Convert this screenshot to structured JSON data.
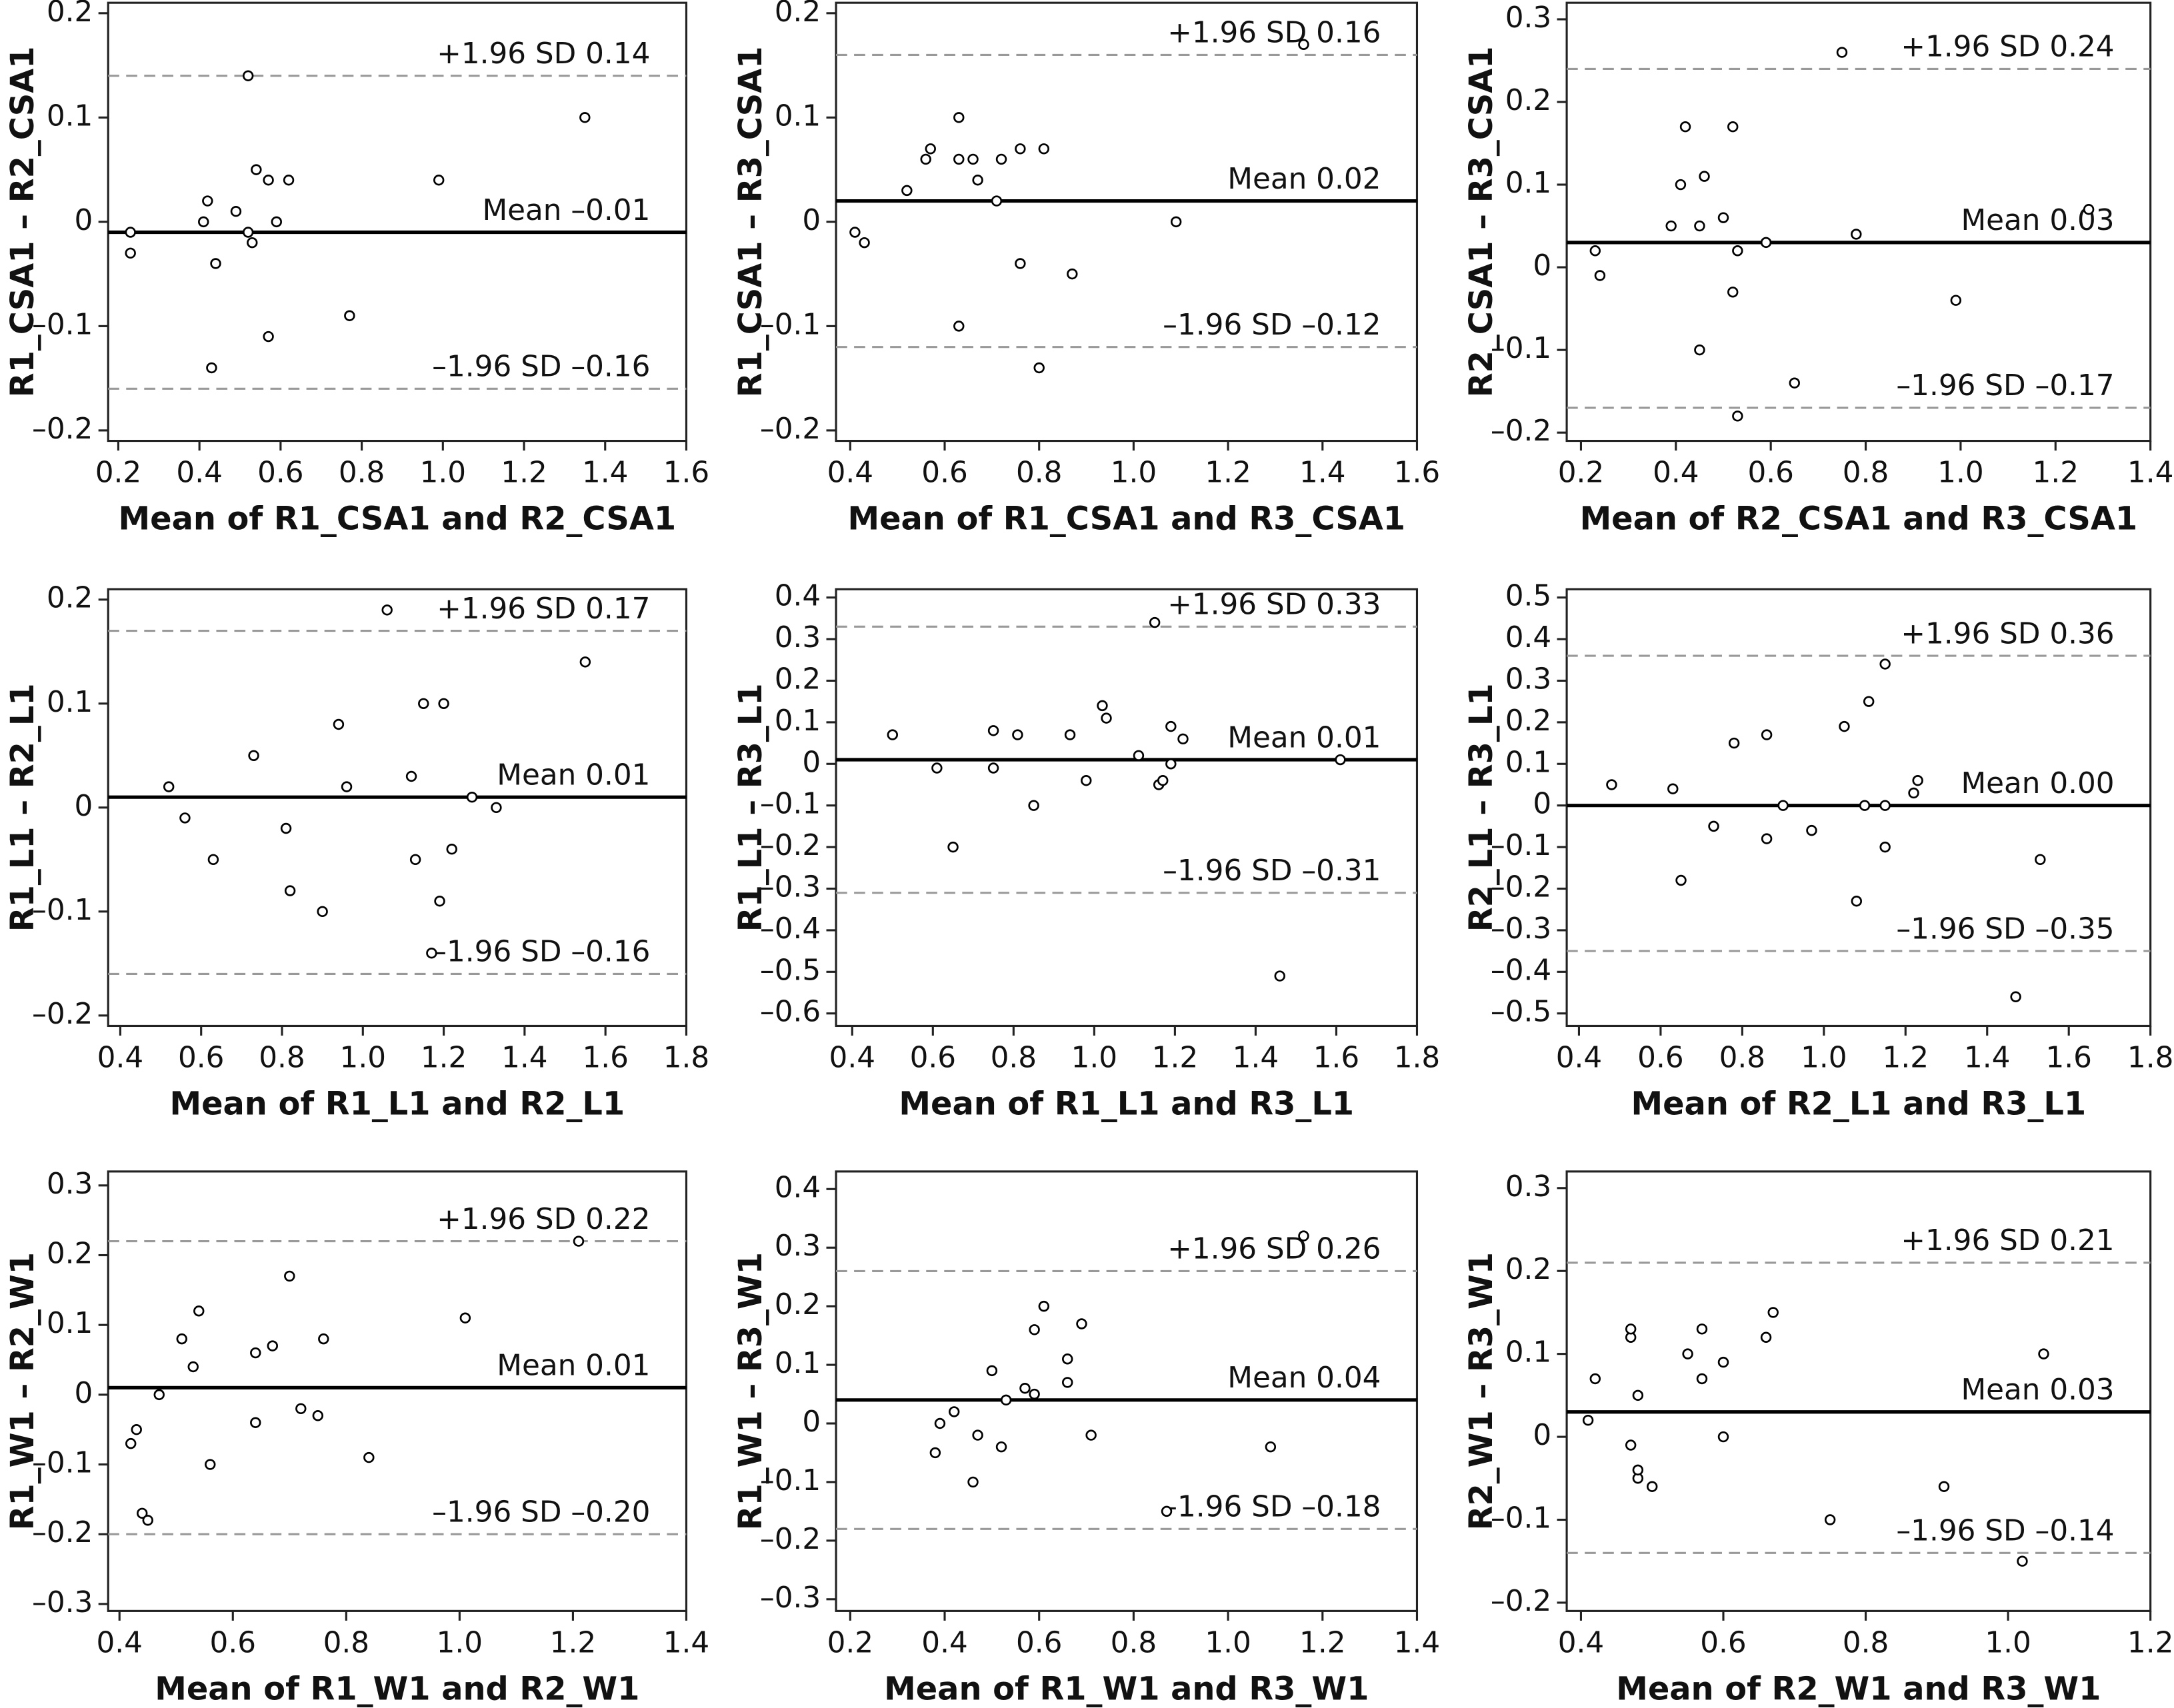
{
  "chart_data": [
    {
      "type": "scatter",
      "y_label": "R1_CSA1 – R2_CSA1",
      "x_label": "Mean of R1_CSA1 and R2_CSA1",
      "color": "#000000",
      "x": [
        0.23,
        0.23,
        0.41,
        0.42,
        0.44,
        0.43,
        0.49,
        0.52,
        0.54,
        0.52,
        0.53,
        0.57,
        0.59,
        0.62,
        0.57,
        0.77,
        0.99,
        1.35
      ],
      "values": [
        -0.01,
        -0.03,
        0,
        0.02,
        -0.04,
        -0.14,
        0.01,
        0.14,
        0.05,
        -0.01,
        -0.02,
        0.04,
        0,
        0.04,
        -0.11,
        -0.09,
        0.04,
        0.1
      ],
      "reference_lines": [
        {
          "label": "+1.96 SD 0.14",
          "value": 0.14,
          "style": "dashed"
        },
        {
          "label": "Mean –0.01",
          "value": -0.01,
          "style": "solid"
        },
        {
          "label": "–1.96 SD –0.16",
          "value": -0.16,
          "style": "dashed"
        }
      ],
      "xlim": [
        0.175,
        1.6
      ],
      "ylim": [
        -0.21,
        0.21
      ],
      "xticks": [
        0.2,
        0.4,
        0.6,
        0.8,
        {
          "value": 1,
          "label": "1.0"
        },
        1.2,
        1.4,
        1.6
      ],
      "yticks": [
        {
          "value": -0.2,
          "label": "–0.2"
        },
        {
          "value": -0.1,
          "label": "–0.1"
        },
        0,
        0.1,
        0.2
      ]
    },
    {
      "type": "scatter",
      "y_label": "R1_CSA1 – R3_CSA1",
      "x_label": "Mean of R1_CSA1 and R3_CSA1",
      "color": "#000000",
      "x": [
        0.41,
        0.43,
        0.52,
        0.56,
        0.57,
        0.63,
        0.63,
        0.66,
        0.67,
        0.71,
        0.72,
        0.76,
        0.81,
        0.63,
        0.76,
        0.8,
        0.87,
        1.09,
        1.36
      ],
      "values": [
        -0.01,
        -0.02,
        0.03,
        0.06,
        0.07,
        0.1,
        0.06,
        0.06,
        0.04,
        0.02,
        0.06,
        0.07,
        0.07,
        -0.1,
        -0.04,
        -0.14,
        -0.05,
        0,
        0.17
      ],
      "reference_lines": [
        {
          "label": "+1.96 SD 0.16",
          "value": 0.16,
          "style": "dashed"
        },
        {
          "label": "Mean 0.02",
          "value": 0.02,
          "style": "solid"
        },
        {
          "label": "–1.96 SD –0.12",
          "value": -0.12,
          "style": "dashed"
        }
      ],
      "xlim": [
        0.37,
        1.6
      ],
      "ylim": [
        -0.21,
        0.21
      ],
      "xticks": [
        0.4,
        0.6,
        0.8,
        {
          "value": 1,
          "label": "1.0"
        },
        1.2,
        1.4,
        1.6
      ],
      "yticks": [
        {
          "value": -0.2,
          "label": "–0.2"
        },
        {
          "value": -0.1,
          "label": "–0.1"
        },
        0,
        0.1,
        0.2
      ]
    },
    {
      "type": "scatter",
      "y_label": "R2_CSA1 – R3_CSA1",
      "x_label": "Mean of R2_CSA1 and R3_CSA1",
      "color": "#000000",
      "x": [
        0.23,
        0.24,
        0.39,
        0.41,
        0.42,
        0.45,
        0.46,
        0.45,
        0.5,
        0.52,
        0.52,
        0.53,
        0.53,
        0.59,
        0.65,
        0.75,
        0.78,
        0.99,
        1.27
      ],
      "values": [
        0.02,
        -0.01,
        0.05,
        0.1,
        0.17,
        0.05,
        0.11,
        -0.1,
        0.06,
        -0.03,
        0.17,
        0.02,
        -0.18,
        0.03,
        -0.14,
        0.26,
        0.04,
        -0.04,
        0.07
      ],
      "reference_lines": [
        {
          "label": "+1.96 SD 0.24",
          "value": 0.24,
          "style": "dashed"
        },
        {
          "label": "Mean 0.03",
          "value": 0.03,
          "style": "solid"
        },
        {
          "label": "–1.96 SD –0.17",
          "value": -0.17,
          "style": "dashed"
        }
      ],
      "xlim": [
        0.17,
        1.4
      ],
      "ylim": [
        -0.21,
        0.32
      ],
      "xticks": [
        0.2,
        0.4,
        0.6,
        0.8,
        {
          "value": 1,
          "label": "1.0"
        },
        1.2,
        1.4
      ],
      "yticks": [
        {
          "value": -0.2,
          "label": "–0.2"
        },
        {
          "value": -0.1,
          "label": "–0.1"
        },
        0,
        0.1,
        0.2,
        0.3
      ]
    },
    {
      "type": "scatter",
      "y_label": "R1_L1 – R2_L1",
      "x_label": "Mean of R1_L1 and R2_L1",
      "color": "#000000",
      "x": [
        0.52,
        0.56,
        0.63,
        0.73,
        0.81,
        0.82,
        0.9,
        0.94,
        0.96,
        1.06,
        1.12,
        1.13,
        1.15,
        1.17,
        1.2,
        1.19,
        1.22,
        1.27,
        1.33,
        1.55
      ],
      "values": [
        0.02,
        -0.01,
        -0.05,
        0.05,
        -0.02,
        -0.08,
        -0.1,
        0.08,
        0.02,
        0.19,
        0.03,
        -0.05,
        0.1,
        -0.14,
        0.1,
        -0.09,
        -0.04,
        0.01,
        0,
        0.14
      ],
      "reference_lines": [
        {
          "label": "+1.96 SD 0.17",
          "value": 0.17,
          "style": "dashed"
        },
        {
          "label": "Mean 0.01",
          "value": 0.01,
          "style": "solid"
        },
        {
          "label": "–1.96 SD –0.16",
          "value": -0.16,
          "style": "dashed"
        }
      ],
      "xlim": [
        0.37,
        1.8
      ],
      "ylim": [
        -0.21,
        0.21
      ],
      "xticks": [
        0.4,
        0.6,
        0.8,
        {
          "value": 1,
          "label": "1.0"
        },
        1.2,
        1.4,
        1.6,
        1.8
      ],
      "yticks": [
        {
          "value": -0.2,
          "label": "–0.2"
        },
        {
          "value": -0.1,
          "label": "–0.1"
        },
        0,
        0.1,
        0.2
      ]
    },
    {
      "type": "scatter",
      "y_label": "R1_L1 – R3_L1",
      "x_label": "Mean of R1_L1 and R3_L1",
      "color": "#000000",
      "x": [
        0.5,
        0.61,
        0.65,
        0.75,
        0.75,
        0.81,
        0.85,
        0.94,
        0.98,
        1.02,
        1.03,
        1.11,
        1.15,
        1.16,
        1.17,
        1.19,
        1.19,
        1.22,
        1.46,
        1.61
      ],
      "values": [
        0.07,
        -0.01,
        -0.2,
        0.08,
        -0.01,
        0.07,
        -0.1,
        0.07,
        -0.04,
        0.14,
        0.11,
        0.02,
        0.34,
        -0.05,
        -0.04,
        0.09,
        0,
        0.06,
        -0.51,
        0.01
      ],
      "reference_lines": [
        {
          "label": "+1.96 SD 0.33",
          "value": 0.33,
          "style": "dashed"
        },
        {
          "label": "Mean 0.01",
          "value": 0.01,
          "style": "solid"
        },
        {
          "label": "–1.96 SD –0.31",
          "value": -0.31,
          "style": "dashed"
        }
      ],
      "xlim": [
        0.36,
        1.8
      ],
      "ylim": [
        -0.63,
        0.42
      ],
      "xticks": [
        0.4,
        0.6,
        0.8,
        {
          "value": 1,
          "label": "1.0"
        },
        1.2,
        1.4,
        1.6,
        1.8
      ],
      "yticks": [
        {
          "value": -0.6,
          "label": "–0.6"
        },
        {
          "value": -0.5,
          "label": "–0.5"
        },
        {
          "value": -0.4,
          "label": "–0.4"
        },
        {
          "value": -0.3,
          "label": "–0.3"
        },
        {
          "value": -0.2,
          "label": "–0.2"
        },
        {
          "value": -0.1,
          "label": "–0.1"
        },
        0,
        0.1,
        0.2,
        0.3,
        0.4
      ]
    },
    {
      "type": "scatter",
      "y_label": "R2_L1 – R3_L1",
      "x_label": "Mean of R2_L1 and R3_L1",
      "color": "#000000",
      "x": [
        0.48,
        0.63,
        0.65,
        0.73,
        0.78,
        0.86,
        0.86,
        0.9,
        0.97,
        1.05,
        1.08,
        1.11,
        1.1,
        1.15,
        1.15,
        1.15,
        1.22,
        1.23,
        1.47,
        1.53
      ],
      "values": [
        0.05,
        0.04,
        -0.18,
        -0.05,
        0.15,
        0.17,
        -0.08,
        0,
        -0.06,
        0.19,
        -0.23,
        0.25,
        0,
        0,
        -0.1,
        0.34,
        0.03,
        0.06,
        -0.46,
        -0.13
      ],
      "reference_lines": [
        {
          "label": "+1.96 SD 0.36",
          "value": 0.36,
          "style": "dashed"
        },
        {
          "label": "Mean 0.00",
          "value": 0,
          "style": "solid"
        },
        {
          "label": "–1.96 SD –0.35",
          "value": -0.35,
          "style": "dashed"
        }
      ],
      "xlim": [
        0.37,
        1.8
      ],
      "ylim": [
        -0.53,
        0.52
      ],
      "xticks": [
        0.4,
        0.6,
        0.8,
        {
          "value": 1,
          "label": "1.0"
        },
        1.2,
        1.4,
        1.6,
        1.8
      ],
      "yticks": [
        {
          "value": -0.5,
          "label": "–0.5"
        },
        {
          "value": -0.4,
          "label": "–0.4"
        },
        {
          "value": -0.3,
          "label": "–0.3"
        },
        {
          "value": -0.2,
          "label": "–0.2"
        },
        {
          "value": -0.1,
          "label": "–0.1"
        },
        0,
        0.1,
        0.2,
        0.3,
        0.4,
        0.5
      ]
    },
    {
      "type": "scatter",
      "y_label": "R1_W1 – R2_W1",
      "x_label": "Mean of R1_W1 and R2_W1",
      "color": "#000000",
      "x": [
        0.42,
        0.43,
        0.44,
        0.45,
        0.47,
        0.51,
        0.53,
        0.54,
        0.56,
        0.64,
        0.64,
        0.67,
        0.7,
        0.72,
        0.75,
        0.76,
        0.84,
        1.01,
        1.21
      ],
      "values": [
        -0.07,
        -0.05,
        -0.17,
        -0.18,
        0,
        0.08,
        0.04,
        0.12,
        -0.1,
        0.06,
        -0.04,
        0.07,
        0.17,
        -0.02,
        -0.03,
        0.08,
        -0.09,
        0.11,
        0.22
      ],
      "reference_lines": [
        {
          "label": "+1.96 SD 0.22",
          "value": 0.22,
          "style": "dashed"
        },
        {
          "label": "Mean 0.01",
          "value": 0.01,
          "style": "solid"
        },
        {
          "label": "–1.96 SD –0.20",
          "value": -0.2,
          "style": "dashed"
        }
      ],
      "xlim": [
        0.38,
        1.4
      ],
      "ylim": [
        -0.31,
        0.32
      ],
      "xticks": [
        0.4,
        0.6,
        0.8,
        {
          "value": 1,
          "label": "1.0"
        },
        1.2,
        1.4
      ],
      "yticks": [
        {
          "value": -0.3,
          "label": "–0.3"
        },
        {
          "value": -0.2,
          "label": "–0.2"
        },
        {
          "value": -0.1,
          "label": "–0.1"
        },
        0,
        0.1,
        0.2,
        0.3
      ]
    },
    {
      "type": "scatter",
      "y_label": "R1_W1 – R3_W1",
      "x_label": "Mean of R1_W1 and R3_W1",
      "color": "#000000",
      "x": [
        0.38,
        0.39,
        0.42,
        0.46,
        0.47,
        0.5,
        0.52,
        0.53,
        0.57,
        0.59,
        0.59,
        0.61,
        0.66,
        0.66,
        0.69,
        0.71,
        0.87,
        1.09,
        1.16
      ],
      "values": [
        -0.05,
        0,
        0.02,
        -0.1,
        -0.02,
        0.09,
        -0.04,
        0.04,
        0.06,
        0.16,
        0.05,
        0.2,
        0.07,
        0.11,
        0.17,
        -0.02,
        -0.15,
        -0.04,
        0.32
      ],
      "reference_lines": [
        {
          "label": "+1.96 SD 0.26",
          "value": 0.26,
          "style": "dashed"
        },
        {
          "label": "Mean 0.04",
          "value": 0.04,
          "style": "solid"
        },
        {
          "label": "–1.96 SD –0.18",
          "value": -0.18,
          "style": "dashed"
        }
      ],
      "xlim": [
        0.17,
        1.4
      ],
      "ylim": [
        -0.32,
        0.43
      ],
      "xticks": [
        0.2,
        0.4,
        0.6,
        0.8,
        {
          "value": 1,
          "label": "1.0"
        },
        1.2,
        1.4
      ],
      "yticks": [
        {
          "value": -0.3,
          "label": "–0.3"
        },
        {
          "value": -0.2,
          "label": "–0.2"
        },
        {
          "value": -0.1,
          "label": "–0.1"
        },
        0,
        0.1,
        0.2,
        0.3,
        0.4
      ]
    },
    {
      "type": "scatter",
      "y_label": "R2_W1 – R3_W1",
      "x_label": "Mean of R2_W1 and R3_W1",
      "color": "#000000",
      "x": [
        0.41,
        0.42,
        0.47,
        0.47,
        0.47,
        0.48,
        0.48,
        0.48,
        0.5,
        0.55,
        0.57,
        0.57,
        0.6,
        0.6,
        0.66,
        0.67,
        0.75,
        0.91,
        1.02,
        1.05
      ],
      "values": [
        0.02,
        0.07,
        0.12,
        0.13,
        -0.01,
        -0.05,
        0.05,
        -0.04,
        -0.06,
        0.1,
        0.13,
        0.07,
        0.09,
        0,
        0.12,
        0.15,
        -0.1,
        -0.06,
        -0.15,
        0.1
      ],
      "reference_lines": [
        {
          "label": "+1.96 SD 0.21",
          "value": 0.21,
          "style": "dashed"
        },
        {
          "label": "Mean 0.03",
          "value": 0.03,
          "style": "solid"
        },
        {
          "label": "–1.96 SD –0.14",
          "value": -0.14,
          "style": "dashed"
        }
      ],
      "xlim": [
        0.38,
        1.2
      ],
      "ylim": [
        -0.21,
        0.32
      ],
      "xticks": [
        0.4,
        0.6,
        0.8,
        {
          "value": 1,
          "label": "1.0"
        },
        1.2
      ],
      "yticks": [
        {
          "value": -0.2,
          "label": "–0.2"
        },
        {
          "value": -0.1,
          "label": "–0.1"
        },
        0,
        0.1,
        0.2,
        0.3
      ]
    }
  ]
}
